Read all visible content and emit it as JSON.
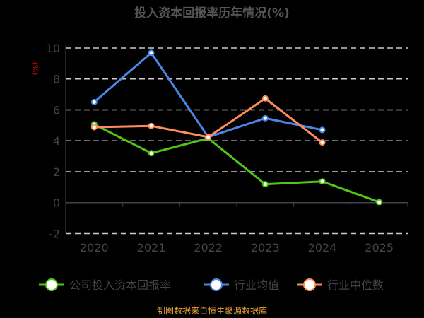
{
  "chart_data": {
    "type": "line",
    "title": "投入资本回报率历年情况(%)",
    "ylabel": "(%)",
    "xlabel": "",
    "categories": [
      "2020",
      "2021",
      "2022",
      "2023",
      "2024",
      "2025"
    ],
    "ylim": [
      -2,
      10
    ],
    "yticks": [
      -2,
      0,
      2,
      4,
      6,
      8,
      10
    ],
    "grid": true,
    "legend_position": "bottom",
    "series": [
      {
        "name": "公司投入资本回报率",
        "color": "#52c41a",
        "values": [
          5.06,
          3.2,
          4.16,
          1.19,
          1.37,
          0.03
        ]
      },
      {
        "name": "行业均值",
        "color": "#4a86e8",
        "values": [
          6.51,
          9.69,
          4.24,
          5.46,
          4.7,
          null
        ]
      },
      {
        "name": "行业中位数",
        "color": "#ff8c5a",
        "values": [
          4.88,
          4.96,
          4.24,
          6.74,
          3.89,
          null
        ]
      }
    ],
    "source": "制图数据来自恒生聚源数据库"
  }
}
